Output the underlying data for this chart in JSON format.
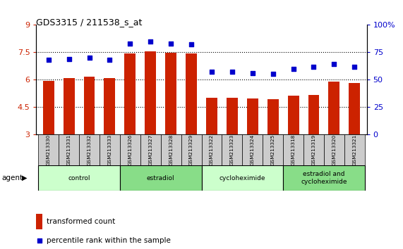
{
  "title": "GDS3315 / 211538_s_at",
  "samples": [
    "GSM213330",
    "GSM213331",
    "GSM213332",
    "GSM213333",
    "GSM213326",
    "GSM213327",
    "GSM213328",
    "GSM213329",
    "GSM213322",
    "GSM213323",
    "GSM213324",
    "GSM213325",
    "GSM213318",
    "GSM213319",
    "GSM213320",
    "GSM213321"
  ],
  "bar_values": [
    5.95,
    6.07,
    6.15,
    6.07,
    7.43,
    7.57,
    7.48,
    7.45,
    5.02,
    5.02,
    4.98,
    4.95,
    5.12,
    5.18,
    5.88,
    5.82
  ],
  "dot_values": [
    68,
    69,
    70,
    68,
    83,
    85,
    83,
    82,
    57,
    57,
    56,
    55,
    60,
    62,
    64,
    62
  ],
  "bar_color": "#cc2200",
  "dot_color": "#0000cc",
  "ylim_left": [
    3,
    9
  ],
  "ylim_right": [
    0,
    100
  ],
  "yticks_left": [
    3,
    4.5,
    6,
    7.5,
    9
  ],
  "yticks_right": [
    0,
    25,
    50,
    75,
    100
  ],
  "ytick_labels_left": [
    "3",
    "4.5",
    "6",
    "7.5",
    "9"
  ],
  "ytick_labels_right": [
    "0",
    "25",
    "50",
    "75",
    "100%"
  ],
  "groups": [
    {
      "label": "control",
      "start": 0,
      "end": 4,
      "color": "#ccffcc"
    },
    {
      "label": "estradiol",
      "start": 4,
      "end": 8,
      "color": "#88dd88"
    },
    {
      "label": "cycloheximide",
      "start": 8,
      "end": 12,
      "color": "#ccffcc"
    },
    {
      "label": "estradiol and\ncycloheximide",
      "start": 12,
      "end": 16,
      "color": "#88dd88"
    }
  ],
  "legend_bar_label": "transformed count",
  "legend_dot_label": "percentile rank within the sample",
  "agent_label": "agent",
  "background_color": "#ffffff",
  "plot_bg_color": "#ffffff",
  "tick_color_left": "#cc2200",
  "tick_color_right": "#0000cc",
  "grid_color": "#000000",
  "bar_width": 0.55
}
